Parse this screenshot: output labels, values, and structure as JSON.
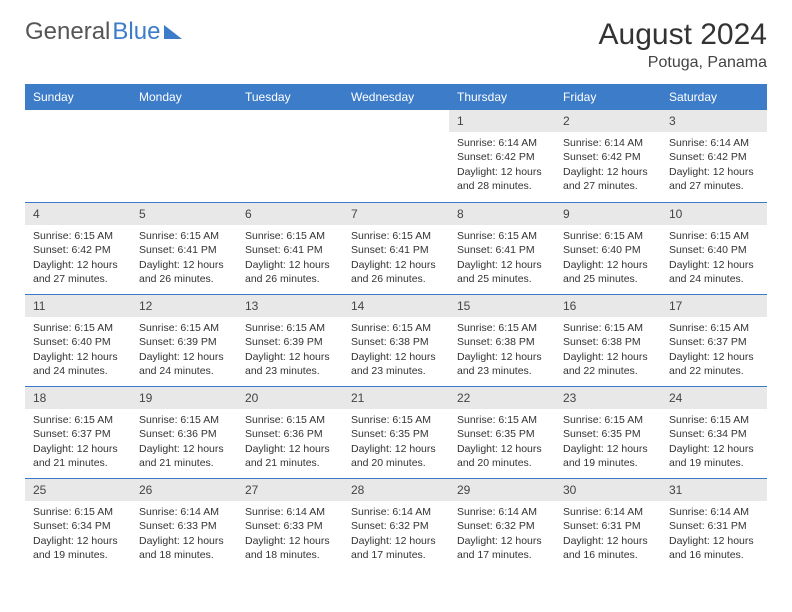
{
  "logo": {
    "left": "General",
    "right": "Blue"
  },
  "title": "August 2024",
  "location": "Potuga, Panama",
  "day_headers": [
    "Sunday",
    "Monday",
    "Tuesday",
    "Wednesday",
    "Thursday",
    "Friday",
    "Saturday"
  ],
  "colors": {
    "header_bg": "#3d7cc9",
    "header_text": "#ffffff",
    "daynum_bg": "#e8e8e8",
    "cell_border_top": "#3d7cc9",
    "body_text": "#333333",
    "page_bg": "#ffffff",
    "logo_gray": "#555555",
    "logo_blue": "#3d7cc9"
  },
  "weeks": [
    [
      {
        "day": "",
        "sunrise": "",
        "sunset": "",
        "daylight": ""
      },
      {
        "day": "",
        "sunrise": "",
        "sunset": "",
        "daylight": ""
      },
      {
        "day": "",
        "sunrise": "",
        "sunset": "",
        "daylight": ""
      },
      {
        "day": "",
        "sunrise": "",
        "sunset": "",
        "daylight": ""
      },
      {
        "day": "1",
        "sunrise": "Sunrise: 6:14 AM",
        "sunset": "Sunset: 6:42 PM",
        "daylight": "Daylight: 12 hours and 28 minutes."
      },
      {
        "day": "2",
        "sunrise": "Sunrise: 6:14 AM",
        "sunset": "Sunset: 6:42 PM",
        "daylight": "Daylight: 12 hours and 27 minutes."
      },
      {
        "day": "3",
        "sunrise": "Sunrise: 6:14 AM",
        "sunset": "Sunset: 6:42 PM",
        "daylight": "Daylight: 12 hours and 27 minutes."
      }
    ],
    [
      {
        "day": "4",
        "sunrise": "Sunrise: 6:15 AM",
        "sunset": "Sunset: 6:42 PM",
        "daylight": "Daylight: 12 hours and 27 minutes."
      },
      {
        "day": "5",
        "sunrise": "Sunrise: 6:15 AM",
        "sunset": "Sunset: 6:41 PM",
        "daylight": "Daylight: 12 hours and 26 minutes."
      },
      {
        "day": "6",
        "sunrise": "Sunrise: 6:15 AM",
        "sunset": "Sunset: 6:41 PM",
        "daylight": "Daylight: 12 hours and 26 minutes."
      },
      {
        "day": "7",
        "sunrise": "Sunrise: 6:15 AM",
        "sunset": "Sunset: 6:41 PM",
        "daylight": "Daylight: 12 hours and 26 minutes."
      },
      {
        "day": "8",
        "sunrise": "Sunrise: 6:15 AM",
        "sunset": "Sunset: 6:41 PM",
        "daylight": "Daylight: 12 hours and 25 minutes."
      },
      {
        "day": "9",
        "sunrise": "Sunrise: 6:15 AM",
        "sunset": "Sunset: 6:40 PM",
        "daylight": "Daylight: 12 hours and 25 minutes."
      },
      {
        "day": "10",
        "sunrise": "Sunrise: 6:15 AM",
        "sunset": "Sunset: 6:40 PM",
        "daylight": "Daylight: 12 hours and 24 minutes."
      }
    ],
    [
      {
        "day": "11",
        "sunrise": "Sunrise: 6:15 AM",
        "sunset": "Sunset: 6:40 PM",
        "daylight": "Daylight: 12 hours and 24 minutes."
      },
      {
        "day": "12",
        "sunrise": "Sunrise: 6:15 AM",
        "sunset": "Sunset: 6:39 PM",
        "daylight": "Daylight: 12 hours and 24 minutes."
      },
      {
        "day": "13",
        "sunrise": "Sunrise: 6:15 AM",
        "sunset": "Sunset: 6:39 PM",
        "daylight": "Daylight: 12 hours and 23 minutes."
      },
      {
        "day": "14",
        "sunrise": "Sunrise: 6:15 AM",
        "sunset": "Sunset: 6:38 PM",
        "daylight": "Daylight: 12 hours and 23 minutes."
      },
      {
        "day": "15",
        "sunrise": "Sunrise: 6:15 AM",
        "sunset": "Sunset: 6:38 PM",
        "daylight": "Daylight: 12 hours and 23 minutes."
      },
      {
        "day": "16",
        "sunrise": "Sunrise: 6:15 AM",
        "sunset": "Sunset: 6:38 PM",
        "daylight": "Daylight: 12 hours and 22 minutes."
      },
      {
        "day": "17",
        "sunrise": "Sunrise: 6:15 AM",
        "sunset": "Sunset: 6:37 PM",
        "daylight": "Daylight: 12 hours and 22 minutes."
      }
    ],
    [
      {
        "day": "18",
        "sunrise": "Sunrise: 6:15 AM",
        "sunset": "Sunset: 6:37 PM",
        "daylight": "Daylight: 12 hours and 21 minutes."
      },
      {
        "day": "19",
        "sunrise": "Sunrise: 6:15 AM",
        "sunset": "Sunset: 6:36 PM",
        "daylight": "Daylight: 12 hours and 21 minutes."
      },
      {
        "day": "20",
        "sunrise": "Sunrise: 6:15 AM",
        "sunset": "Sunset: 6:36 PM",
        "daylight": "Daylight: 12 hours and 21 minutes."
      },
      {
        "day": "21",
        "sunrise": "Sunrise: 6:15 AM",
        "sunset": "Sunset: 6:35 PM",
        "daylight": "Daylight: 12 hours and 20 minutes."
      },
      {
        "day": "22",
        "sunrise": "Sunrise: 6:15 AM",
        "sunset": "Sunset: 6:35 PM",
        "daylight": "Daylight: 12 hours and 20 minutes."
      },
      {
        "day": "23",
        "sunrise": "Sunrise: 6:15 AM",
        "sunset": "Sunset: 6:35 PM",
        "daylight": "Daylight: 12 hours and 19 minutes."
      },
      {
        "day": "24",
        "sunrise": "Sunrise: 6:15 AM",
        "sunset": "Sunset: 6:34 PM",
        "daylight": "Daylight: 12 hours and 19 minutes."
      }
    ],
    [
      {
        "day": "25",
        "sunrise": "Sunrise: 6:15 AM",
        "sunset": "Sunset: 6:34 PM",
        "daylight": "Daylight: 12 hours and 19 minutes."
      },
      {
        "day": "26",
        "sunrise": "Sunrise: 6:14 AM",
        "sunset": "Sunset: 6:33 PM",
        "daylight": "Daylight: 12 hours and 18 minutes."
      },
      {
        "day": "27",
        "sunrise": "Sunrise: 6:14 AM",
        "sunset": "Sunset: 6:33 PM",
        "daylight": "Daylight: 12 hours and 18 minutes."
      },
      {
        "day": "28",
        "sunrise": "Sunrise: 6:14 AM",
        "sunset": "Sunset: 6:32 PM",
        "daylight": "Daylight: 12 hours and 17 minutes."
      },
      {
        "day": "29",
        "sunrise": "Sunrise: 6:14 AM",
        "sunset": "Sunset: 6:32 PM",
        "daylight": "Daylight: 12 hours and 17 minutes."
      },
      {
        "day": "30",
        "sunrise": "Sunrise: 6:14 AM",
        "sunset": "Sunset: 6:31 PM",
        "daylight": "Daylight: 12 hours and 16 minutes."
      },
      {
        "day": "31",
        "sunrise": "Sunrise: 6:14 AM",
        "sunset": "Sunset: 6:31 PM",
        "daylight": "Daylight: 12 hours and 16 minutes."
      }
    ]
  ]
}
